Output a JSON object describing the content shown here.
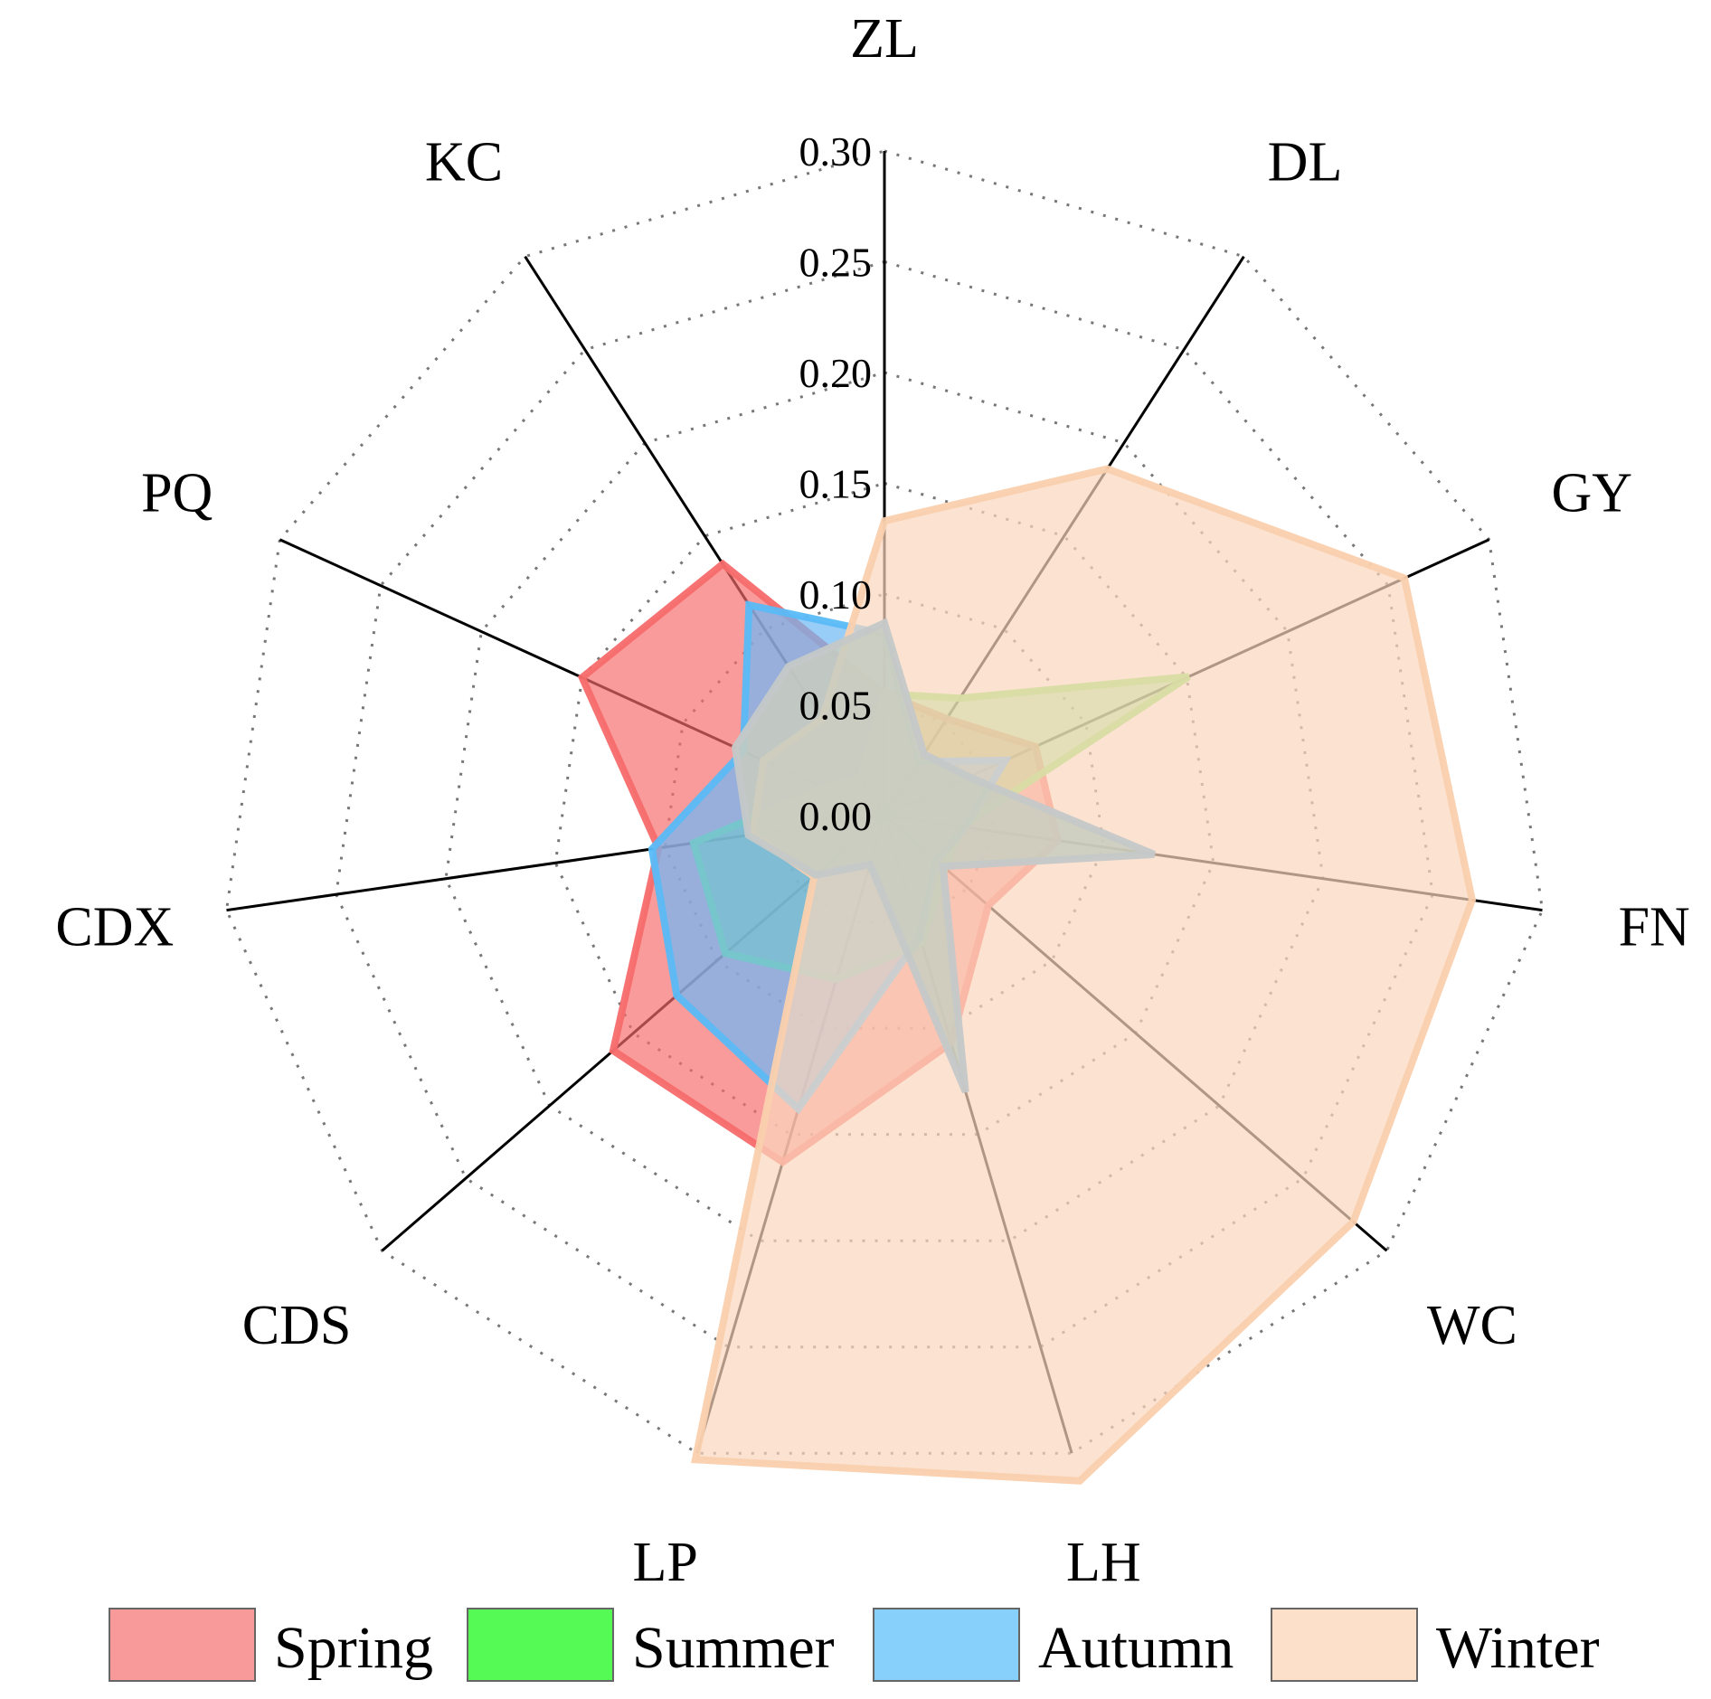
{
  "chart_data": {
    "type": "radar",
    "axes": [
      "ZL",
      "DL",
      "GY",
      "FN",
      "WC",
      "LH",
      "LP",
      "CDS",
      "CDX",
      "PQ",
      "KC"
    ],
    "rmax": 0.3,
    "ticks": [
      "0.00",
      "0.05",
      "0.10",
      "0.15",
      "0.20",
      "0.25",
      "0.30"
    ],
    "tick_values": [
      0,
      0.05,
      0.1,
      0.15,
      0.2,
      0.25,
      0.3
    ],
    "grid": true,
    "legend_position": "bottom",
    "series": [
      {
        "name": "Spring",
        "fill": "#F76B6B",
        "stroke": "#F76B6B",
        "legend_fill": "#F99A9A",
        "fill_opacity": 0.68,
        "values": [
          0.055,
          0.052,
          0.075,
          0.079,
          0.062,
          0.107,
          0.163,
          0.162,
          0.103,
          0.15,
          0.135
        ]
      },
      {
        "name": "Summer",
        "fill": "#6DE86D",
        "stroke": "#8BE86B",
        "legend_fill": "#55FA55",
        "fill_opacity": 0.55,
        "values": [
          0.055,
          0.063,
          0.151,
          0.035,
          0.036,
          0.06,
          0.077,
          0.095,
          0.087,
          0.03,
          0.02
        ]
      },
      {
        "name": "Autumn",
        "fill": "#6CB8F5",
        "stroke": "#5ABAF7",
        "legend_fill": "#88D0FC",
        "fill_opacity": 0.7,
        "values": [
          0.082,
          0.029,
          0.06,
          0.037,
          0.031,
          0.057,
          0.138,
          0.124,
          0.106,
          0.07,
          0.113
        ]
      },
      {
        "name": "Winter",
        "fill": "#FBD7BD",
        "stroke": "#FAD0AE",
        "legend_fill": "#FDE0CA",
        "fill_opacity": 0.7,
        "values": [
          0.133,
          0.186,
          0.258,
          0.268,
          0.28,
          0.313,
          0.303,
          0.042,
          0.06,
          0.06,
          0.052
        ]
      },
      {
        "name": "",
        "fill": "#C8CCC0",
        "stroke": "#C4C8C8",
        "fill_opacity": 0.85,
        "values": [
          0.087,
          0.033,
          0.042,
          0.123,
          0.035,
          0.13,
          0.023,
          0.041,
          0.062,
          0.074,
          0.08
        ]
      }
    ]
  }
}
